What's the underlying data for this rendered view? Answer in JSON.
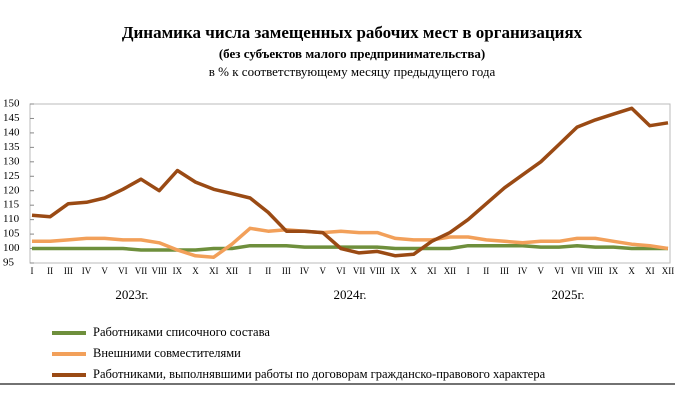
{
  "chart_data": {
    "type": "line",
    "title": "Динамика числа замещенных рабочих мест в организациях",
    "subtitle": "(без субъектов малого предпринимательства)",
    "units_label": "в % к соответствующему месяцу предыдущего года",
    "categories": [
      "I",
      "II",
      "III",
      "IV",
      "V",
      "VI",
      "VII",
      "VIII",
      "IX",
      "X",
      "XI",
      "XII",
      "I",
      "II",
      "III",
      "IV",
      "V",
      "VI",
      "VII",
      "VIII",
      "IX",
      "X",
      "XI",
      "XII",
      "I",
      "II",
      "III",
      "IV",
      "V",
      "VI",
      "VII",
      "VIII",
      "IX",
      "X",
      "XI",
      "XII"
    ],
    "years": [
      "2023г.",
      "2024г.",
      "2025г."
    ],
    "ylim": [
      95,
      150
    ],
    "yticks": [
      95,
      100,
      105,
      110,
      115,
      120,
      125,
      130,
      135,
      140,
      145,
      150
    ],
    "grid": false,
    "series": [
      {
        "name": "Работниками списочного состава",
        "color": "#6e8f3c",
        "values": [
          100,
          100,
          100,
          100,
          100,
          100,
          99.5,
          99.5,
          99.5,
          99.5,
          100,
          100,
          101,
          101,
          101,
          100.5,
          100.5,
          100.5,
          100.5,
          100.5,
          100,
          100,
          100,
          100,
          101,
          101,
          101,
          101,
          100.5,
          100.5,
          101,
          100.5,
          100.5,
          100,
          100,
          100
        ]
      },
      {
        "name": "Внешними совместителями",
        "color": "#f2a05a",
        "values": [
          102.5,
          102.5,
          103,
          103.5,
          103.5,
          103,
          103,
          102,
          99.5,
          97.5,
          97,
          101.5,
          107,
          106,
          106.5,
          106,
          105.5,
          106,
          105.5,
          105.5,
          103.5,
          103,
          103,
          104,
          104,
          103,
          102.5,
          102,
          102.5,
          102.5,
          103.5,
          103.5,
          102.5,
          101.5,
          101,
          100
        ]
      },
      {
        "name": "Работниками, выполнявшими работы по договорам гражданско-правового характера",
        "color": "#9a4a14",
        "values": [
          111.5,
          111,
          115.5,
          116,
          117.5,
          120.5,
          124,
          120,
          127,
          123,
          120.5,
          119,
          117.5,
          112.5,
          106,
          106,
          105.5,
          100,
          98.5,
          99,
          97.5,
          98,
          102.5,
          105.5,
          110,
          115.5,
          121,
          125.5,
          130,
          136,
          142,
          144.5,
          146.5,
          148.5,
          142.5,
          143.5
        ]
      }
    ]
  }
}
